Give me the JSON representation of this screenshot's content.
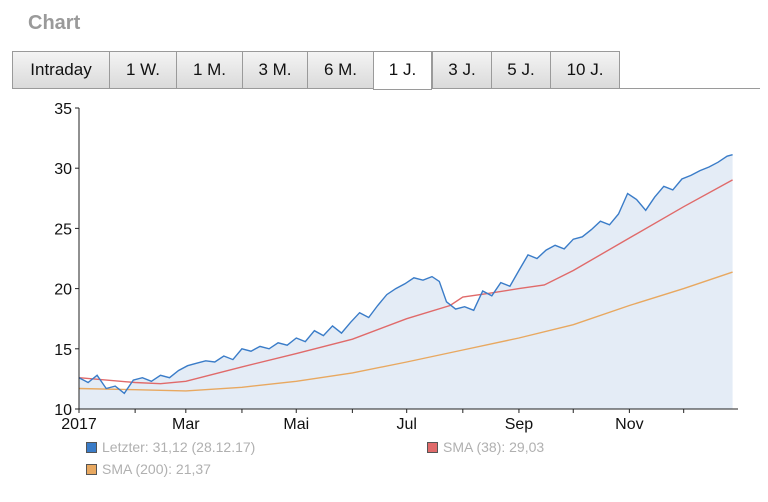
{
  "header": {
    "title": "Chart"
  },
  "tabs": [
    {
      "label": "Intraday",
      "active": false
    },
    {
      "label": "1 W.",
      "active": false
    },
    {
      "label": "1 M.",
      "active": false
    },
    {
      "label": "3 M.",
      "active": false
    },
    {
      "label": "6 M.",
      "active": false
    },
    {
      "label": "1 J.",
      "active": true
    },
    {
      "label": "3 J.",
      "active": false
    },
    {
      "label": "5 J.",
      "active": false
    },
    {
      "label": "10 J.",
      "active": false
    }
  ],
  "legend": [
    {
      "label": "Letzter: 31,12 (28.12.17)",
      "color": "#3a7cc8"
    },
    {
      "label": "SMA (38): 29,03",
      "color": "#e06a6a"
    },
    {
      "label": "SMA (200): 21,37",
      "color": "#e8a860"
    }
  ],
  "chart_data": {
    "type": "line",
    "title": "",
    "xlabel": "",
    "ylabel": "",
    "ylim": [
      10,
      35
    ],
    "yticks": [
      10,
      15,
      20,
      25,
      30,
      35
    ],
    "xlim": [
      "2017-01-01",
      "2017-12-31"
    ],
    "xticks": [
      {
        "label": "2017",
        "date": "2017-01-01"
      },
      {
        "label": "Mar",
        "date": "2017-03-01"
      },
      {
        "label": "Mai",
        "date": "2017-05-01"
      },
      {
        "label": "Jul",
        "date": "2017-07-01"
      },
      {
        "label": "Sep",
        "date": "2017-09-01"
      },
      {
        "label": "Nov",
        "date": "2017-11-01"
      }
    ],
    "grid": false,
    "area_fill": "#e4ecf6",
    "series": [
      {
        "name": "Letzter",
        "color": "#3a7cc8",
        "points": [
          [
            "2017-01-01",
            12.6
          ],
          [
            "2017-01-06",
            12.2
          ],
          [
            "2017-01-11",
            12.8
          ],
          [
            "2017-01-16",
            11.7
          ],
          [
            "2017-01-21",
            11.9
          ],
          [
            "2017-01-26",
            11.3
          ],
          [
            "2017-01-31",
            12.4
          ],
          [
            "2017-02-05",
            12.6
          ],
          [
            "2017-02-10",
            12.3
          ],
          [
            "2017-02-15",
            12.8
          ],
          [
            "2017-02-20",
            12.6
          ],
          [
            "2017-02-25",
            13.2
          ],
          [
            "2017-03-02",
            13.6
          ],
          [
            "2017-03-07",
            13.8
          ],
          [
            "2017-03-12",
            14.0
          ],
          [
            "2017-03-17",
            13.9
          ],
          [
            "2017-03-22",
            14.4
          ],
          [
            "2017-03-27",
            14.1
          ],
          [
            "2017-04-01",
            15.0
          ],
          [
            "2017-04-06",
            14.8
          ],
          [
            "2017-04-11",
            15.2
          ],
          [
            "2017-04-16",
            15.0
          ],
          [
            "2017-04-21",
            15.5
          ],
          [
            "2017-04-26",
            15.3
          ],
          [
            "2017-05-01",
            15.9
          ],
          [
            "2017-05-06",
            15.6
          ],
          [
            "2017-05-11",
            16.5
          ],
          [
            "2017-05-16",
            16.1
          ],
          [
            "2017-05-21",
            16.9
          ],
          [
            "2017-05-26",
            16.3
          ],
          [
            "2017-05-31",
            17.2
          ],
          [
            "2017-06-05",
            18.0
          ],
          [
            "2017-06-10",
            17.6
          ],
          [
            "2017-06-15",
            18.6
          ],
          [
            "2017-06-20",
            19.5
          ],
          [
            "2017-06-25",
            20.0
          ],
          [
            "2017-06-30",
            20.4
          ],
          [
            "2017-07-05",
            20.9
          ],
          [
            "2017-07-10",
            20.7
          ],
          [
            "2017-07-15",
            21.0
          ],
          [
            "2017-07-19",
            20.6
          ],
          [
            "2017-07-23",
            18.9
          ],
          [
            "2017-07-28",
            18.3
          ],
          [
            "2017-08-02",
            18.5
          ],
          [
            "2017-08-07",
            18.2
          ],
          [
            "2017-08-12",
            19.8
          ],
          [
            "2017-08-17",
            19.4
          ],
          [
            "2017-08-22",
            20.5
          ],
          [
            "2017-08-27",
            20.2
          ],
          [
            "2017-09-01",
            21.5
          ],
          [
            "2017-09-06",
            22.8
          ],
          [
            "2017-09-11",
            22.5
          ],
          [
            "2017-09-16",
            23.2
          ],
          [
            "2017-09-21",
            23.6
          ],
          [
            "2017-09-26",
            23.3
          ],
          [
            "2017-10-01",
            24.1
          ],
          [
            "2017-10-06",
            24.3
          ],
          [
            "2017-10-11",
            24.9
          ],
          [
            "2017-10-16",
            25.6
          ],
          [
            "2017-10-21",
            25.3
          ],
          [
            "2017-10-26",
            26.2
          ],
          [
            "2017-10-31",
            27.9
          ],
          [
            "2017-11-05",
            27.4
          ],
          [
            "2017-11-10",
            26.5
          ],
          [
            "2017-11-15",
            27.6
          ],
          [
            "2017-11-20",
            28.5
          ],
          [
            "2017-11-25",
            28.2
          ],
          [
            "2017-11-30",
            29.1
          ],
          [
            "2017-12-05",
            29.4
          ],
          [
            "2017-12-10",
            29.8
          ],
          [
            "2017-12-15",
            30.1
          ],
          [
            "2017-12-20",
            30.5
          ],
          [
            "2017-12-25",
            31.0
          ],
          [
            "2017-12-28",
            31.12
          ]
        ]
      },
      {
        "name": "SMA (38)",
        "color": "#e06a6a",
        "points": [
          [
            "2017-01-01",
            12.6
          ],
          [
            "2017-02-01",
            12.2
          ],
          [
            "2017-02-15",
            12.1
          ],
          [
            "2017-03-01",
            12.3
          ],
          [
            "2017-04-01",
            13.5
          ],
          [
            "2017-05-01",
            14.6
          ],
          [
            "2017-06-01",
            15.8
          ],
          [
            "2017-07-01",
            17.5
          ],
          [
            "2017-07-25",
            18.6
          ],
          [
            "2017-08-01",
            19.3
          ],
          [
            "2017-08-15",
            19.6
          ],
          [
            "2017-09-01",
            20.0
          ],
          [
            "2017-09-15",
            20.3
          ],
          [
            "2017-10-01",
            21.5
          ],
          [
            "2017-11-01",
            24.2
          ],
          [
            "2017-12-01",
            26.8
          ],
          [
            "2017-12-28",
            29.03
          ]
        ]
      },
      {
        "name": "SMA (200)",
        "color": "#e8a860",
        "points": [
          [
            "2017-01-01",
            11.7
          ],
          [
            "2017-02-01",
            11.6
          ],
          [
            "2017-03-01",
            11.5
          ],
          [
            "2017-04-01",
            11.8
          ],
          [
            "2017-05-01",
            12.3
          ],
          [
            "2017-06-01",
            13.0
          ],
          [
            "2017-07-01",
            13.9
          ],
          [
            "2017-08-01",
            14.9
          ],
          [
            "2017-09-01",
            15.9
          ],
          [
            "2017-10-01",
            17.0
          ],
          [
            "2017-11-01",
            18.6
          ],
          [
            "2017-12-01",
            20.0
          ],
          [
            "2017-12-28",
            21.37
          ]
        ]
      }
    ]
  }
}
